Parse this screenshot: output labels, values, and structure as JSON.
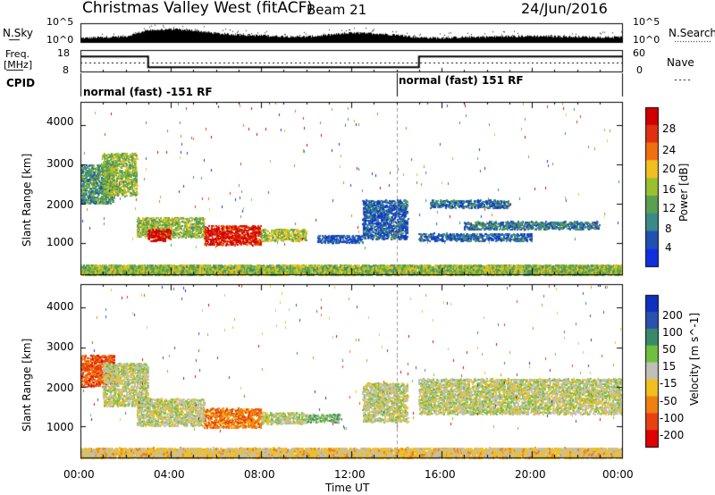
{
  "header": {
    "title": "Christmas Valley West (fitACF)",
    "beam": "Beam 21",
    "date": "24/Jun/2016"
  },
  "left_labels": {
    "nsky": "N.Sky",
    "freq_line1": "Freq.",
    "freq_line2": "[MHz]",
    "cpid": "CPID"
  },
  "right_labels": {
    "nsearch": "N.Search",
    "nave": "Nave"
  },
  "noise_panel": {
    "left_ticks": [
      "10^5",
      "10^0"
    ],
    "right_ticks": [
      "10^5",
      "10^0"
    ]
  },
  "freq_panel": {
    "left_ticks": [
      "18",
      "8"
    ],
    "right_ticks": [
      "60",
      "0"
    ]
  },
  "cpid_panel": {
    "segments": [
      {
        "label": "normal (fast) -151 RF",
        "start_hour": 0,
        "end_hour": 14
      },
      {
        "label": "normal (fast) 151 RF",
        "start_hour": 14,
        "end_hour": 24
      }
    ]
  },
  "x_axis": {
    "label": "Time UT",
    "ticks": [
      "00:00",
      "04:00",
      "08:00",
      "12:00",
      "16:00",
      "20:00",
      "00:00"
    ]
  },
  "colors": {
    "power_scale": [
      "#1030e0",
      "#2050b0",
      "#3a8a8a",
      "#5aa050",
      "#9ac030",
      "#f0c020",
      "#f07010",
      "#e03010",
      "#d00000"
    ],
    "velocity_scale": [
      "#1030c0",
      "#2a50b0",
      "#3a8a6a",
      "#70c040",
      "#c0c0b8",
      "#f0c020",
      "#f08010",
      "#e84010",
      "#e00000"
    ]
  },
  "chart_data": [
    {
      "type": "heatmap",
      "name": "noise_and_frequency_summary",
      "x_unit": "hours UT",
      "noise_sky_log10": {
        "x": [
          0,
          1,
          2,
          3,
          4,
          5,
          6,
          7,
          8,
          9,
          10,
          11,
          12,
          13,
          14,
          15,
          16,
          17,
          18,
          19,
          20,
          21,
          22,
          23,
          24
        ],
        "values": [
          1.0,
          1.3,
          1.5,
          3.2,
          3.4,
          3.1,
          2.3,
          1.9,
          1.7,
          1.5,
          1.4,
          1.9,
          2.4,
          2.3,
          1.9,
          1.2,
          1.1,
          1.3,
          1.4,
          1.5,
          1.6,
          1.5,
          1.4,
          1.3,
          1.3
        ],
        "ylim": [
          0,
          5
        ]
      },
      "frequency_mhz": {
        "x": [
          0,
          3,
          3,
          15,
          15,
          24
        ],
        "values": [
          15,
          15,
          10,
          10,
          15,
          15
        ],
        "ylim": [
          8,
          18
        ]
      },
      "nave": {
        "value": 25,
        "ylim": [
          0,
          60
        ]
      }
    },
    {
      "type": "heatmap",
      "name": "power",
      "xlabel": "Time UT",
      "ylabel": "Slant Range [km]",
      "ylim": [
        200,
        4600
      ],
      "y_ticks": [
        1000,
        2000,
        3000,
        4000
      ],
      "x_ticks": [
        "00:00",
        "04:00",
        "08:00",
        "12:00",
        "16:00",
        "20:00",
        "00:00"
      ],
      "colorbar": {
        "label": "Power [dB]",
        "ticks": [
          "4",
          "8",
          "12",
          "16",
          "20",
          "24",
          "28"
        ],
        "range": [
          0,
          30
        ]
      },
      "regions": [
        {
          "t0": 0.0,
          "t1": 1.5,
          "r0": 2000,
          "r1": 3000,
          "v": 10
        },
        {
          "t0": 1.0,
          "t1": 2.5,
          "r0": 2200,
          "r1": 3300,
          "v": 14
        },
        {
          "t0": 2.5,
          "t1": 5.5,
          "r0": 1150,
          "r1": 1650,
          "v": 14
        },
        {
          "t0": 3.0,
          "t1": 4.0,
          "r0": 1050,
          "r1": 1350,
          "v": 28
        },
        {
          "t0": 5.5,
          "t1": 8.0,
          "r0": 950,
          "r1": 1450,
          "v": 27
        },
        {
          "t0": 8.0,
          "t1": 10.0,
          "r0": 1050,
          "r1": 1350,
          "v": 15
        },
        {
          "t0": 10.5,
          "t1": 12.5,
          "r0": 1000,
          "r1": 1200,
          "v": 5
        },
        {
          "t0": 12.5,
          "t1": 14.5,
          "r0": 1100,
          "r1": 2100,
          "v": 6
        },
        {
          "t0": 15.5,
          "t1": 19.0,
          "r0": 1900,
          "r1": 2100,
          "v": 7
        },
        {
          "t0": 17.0,
          "t1": 23.0,
          "r0": 1350,
          "r1": 1550,
          "v": 8
        },
        {
          "t0": 15.0,
          "t1": 20.0,
          "r0": 1050,
          "r1": 1250,
          "v": 6
        },
        {
          "t0": 0.0,
          "t1": 24.0,
          "r0": 200,
          "r1": 450,
          "v": 14
        }
      ]
    },
    {
      "type": "heatmap",
      "name": "velocity",
      "xlabel": "Time UT",
      "ylabel": "Slant Range [km]",
      "ylim": [
        200,
        4600
      ],
      "y_ticks": [
        1000,
        2000,
        3000,
        4000
      ],
      "x_ticks": [
        "00:00",
        "04:00",
        "08:00",
        "12:00",
        "16:00",
        "20:00",
        "00:00"
      ],
      "colorbar": {
        "label": "Velocity [m s^-1]",
        "ticks": [
          "200",
          "100",
          "50",
          "15",
          "-15",
          "-50",
          "-100",
          "-200"
        ],
        "range": [
          -250,
          250
        ]
      },
      "regions": [
        {
          "t0": 0.0,
          "t1": 1.5,
          "r0": 2000,
          "r1": 2800,
          "v": -150
        },
        {
          "t0": 1.0,
          "t1": 3.0,
          "r0": 1500,
          "r1": 2600,
          "v": 0
        },
        {
          "t0": 2.5,
          "t1": 5.5,
          "r0": 1000,
          "r1": 1700,
          "v": 0
        },
        {
          "t0": 5.5,
          "t1": 8.0,
          "r0": 950,
          "r1": 1450,
          "v": -120
        },
        {
          "t0": 8.0,
          "t1": 10.0,
          "r0": 1050,
          "r1": 1350,
          "v": 0
        },
        {
          "t0": 10.0,
          "t1": 11.5,
          "r0": 1100,
          "r1": 1300,
          "v": 60
        },
        {
          "t0": 12.5,
          "t1": 14.5,
          "r0": 1100,
          "r1": 2100,
          "v": 0
        },
        {
          "t0": 15.0,
          "t1": 24.0,
          "r0": 1300,
          "r1": 2200,
          "v": 0
        },
        {
          "t0": 0.0,
          "t1": 24.0,
          "r0": 200,
          "r1": 450,
          "v": -40
        }
      ]
    }
  ]
}
